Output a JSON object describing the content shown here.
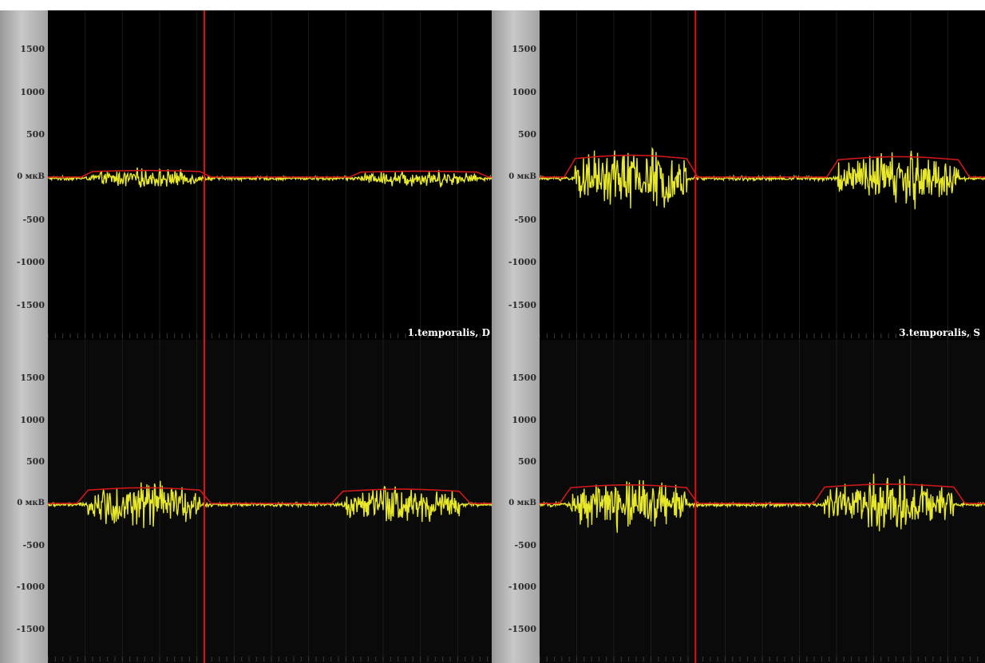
{
  "chart_data": [
    {
      "type": "line",
      "channel_label": "1.temporalis, D",
      "ylim": [
        -1800,
        1800
      ],
      "yticks": [
        "1500",
        "1000",
        "500",
        "0 мкВ",
        "-500",
        "-1000",
        "-1500"
      ],
      "marker_x": 0.35,
      "bursts": [
        {
          "start": 0.1,
          "end": 0.34,
          "amplitude": 90
        },
        {
          "start": 0.7,
          "end": 0.96,
          "amplitude": 80
        }
      ],
      "baseline_noise": 18,
      "colors": {
        "signal": "#e8e82a",
        "envelope": "#d01818",
        "marker": "#e01010",
        "background": "#000000"
      }
    },
    {
      "type": "line",
      "channel_label": "3.temporalis, S",
      "ylim": [
        -1800,
        1800
      ],
      "yticks": [
        "1500",
        "1000",
        "500",
        "0 мкВ",
        "-500",
        "-1000",
        "-1500"
      ],
      "marker_x": 0.35,
      "bursts": [
        {
          "start": 0.08,
          "end": 0.33,
          "amplitude": 300
        },
        {
          "start": 0.67,
          "end": 0.94,
          "amplitude": 280
        }
      ],
      "baseline_noise": 20,
      "colors": {
        "signal": "#e8e82a",
        "envelope": "#d01818",
        "marker": "#e01010",
        "background": "#000000"
      }
    },
    {
      "type": "line",
      "channel_label": "",
      "ylim": [
        -1800,
        1800
      ],
      "yticks": [
        "1500",
        "1000",
        "500",
        "0 мкВ",
        "-500",
        "-1000",
        "-1500"
      ],
      "marker_x": 0.35,
      "bursts": [
        {
          "start": 0.09,
          "end": 0.34,
          "amplitude": 220
        },
        {
          "start": 0.66,
          "end": 0.92,
          "amplitude": 200
        }
      ],
      "baseline_noise": 18,
      "colors": {
        "signal": "#e8e82a",
        "envelope": "#d01818",
        "marker": "#e01010",
        "background": "#0a0a0a"
      }
    },
    {
      "type": "line",
      "channel_label": "",
      "ylim": [
        -1800,
        1800
      ],
      "yticks": [
        "1500",
        "1000",
        "500",
        "0 мкВ",
        "-500",
        "-1000",
        "-1500"
      ],
      "marker_x": 0.35,
      "bursts": [
        {
          "start": 0.07,
          "end": 0.33,
          "amplitude": 260
        },
        {
          "start": 0.64,
          "end": 0.93,
          "amplitude": 270
        }
      ],
      "baseline_noise": 18,
      "colors": {
        "signal": "#e8e82a",
        "envelope": "#d01818",
        "marker": "#e01010",
        "background": "#0a0a0a"
      }
    }
  ]
}
